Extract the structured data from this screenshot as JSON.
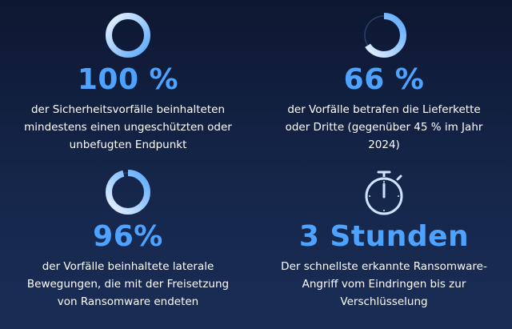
{
  "stats": [
    {
      "value": "100 %",
      "desc_lines": [
        "der Sicherheitsvorfälle beinhalteten",
        "mindestens einen ungeschützten oder",
        "unbefugten Endpunkt"
      ],
      "icon": "ring-progress-icon",
      "fill": 1.0
    },
    {
      "value": "66 %",
      "desc_lines": [
        "der Vorfälle betrafen die Lieferkette",
        "oder Dritte (gegenüber 45 % im Jahr",
        "2024)"
      ],
      "icon": "ring-progress-icon",
      "fill": 0.66
    },
    {
      "value": "96%",
      "desc_lines": [
        "der Vorfälle beinhaltete laterale",
        "Bewegungen, die mit der Freisetzung",
        "von Ransomware endeten"
      ],
      "icon": "ring-progress-icon",
      "fill": 0.96
    },
    {
      "value": "3 Stunden",
      "desc_lines": [
        "Der schnellste erkannte Ransomware-",
        "Angriff vom Eindringen bis zur",
        "Verschlüsselung"
      ],
      "icon": "stopwatch-icon"
    }
  ],
  "colors": {
    "accent": "#4da3ff",
    "accent_light": "#cfe4ff",
    "background": "#14244a",
    "text": "#ffffff"
  }
}
